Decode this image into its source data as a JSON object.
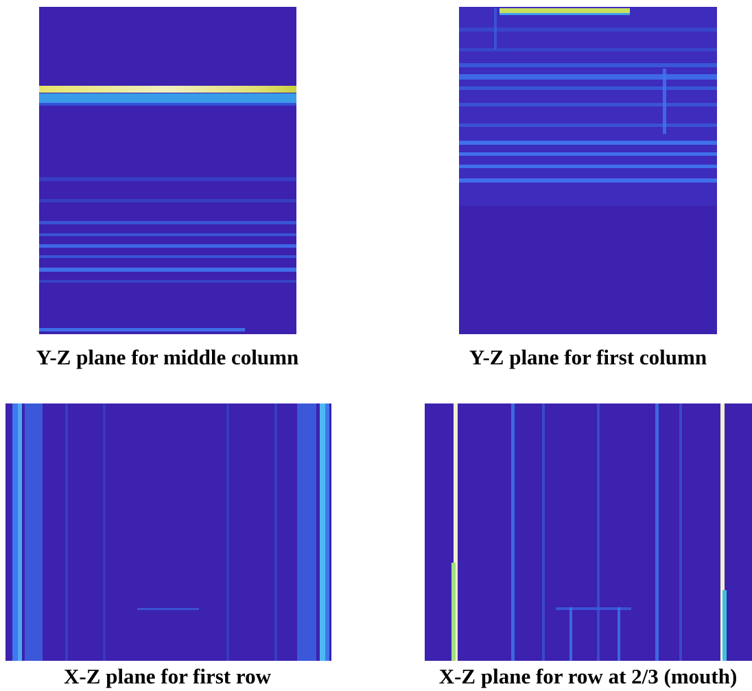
{
  "panels": [
    {
      "caption": "Y-Z plane for middle column"
    },
    {
      "caption": "Y-Z plane for first column"
    },
    {
      "caption": "X-Z plane for first row"
    },
    {
      "caption": "X-Z plane for row at 2/3 (mouth)"
    }
  ]
}
